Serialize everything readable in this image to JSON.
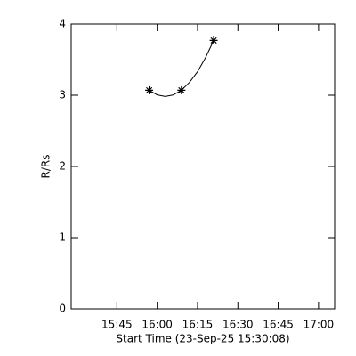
{
  "chart_data": {
    "type": "scatter",
    "x_label": "Start Time (23-Sep-25 15:30:08)",
    "y_label": "R/Rs",
    "xlim": [
      928,
      1026
    ],
    "xticks": [
      {
        "value": 945,
        "label": "15:45"
      },
      {
        "value": 960,
        "label": "16:00"
      },
      {
        "value": 975,
        "label": "16:15"
      },
      {
        "value": 990,
        "label": "16:30"
      },
      {
        "value": 1005,
        "label": "16:45"
      },
      {
        "value": 1020,
        "label": "17:00"
      }
    ],
    "ylim": [
      0,
      4
    ],
    "yticks": [
      0,
      1,
      2,
      3,
      4
    ],
    "series": [
      {
        "color": "#000000",
        "marker": "star",
        "x": [
          957,
          969,
          981
        ],
        "values": [
          3.07,
          3.07,
          3.77
        ]
      },
      {
        "color": "#000000",
        "marker": "line",
        "x": [
          957,
          960,
          963,
          966,
          969,
          972,
          975,
          978,
          981
        ],
        "values": [
          3.07,
          3.005,
          2.983,
          3.005,
          3.07,
          3.18,
          3.33,
          3.53,
          3.77
        ]
      }
    ]
  }
}
